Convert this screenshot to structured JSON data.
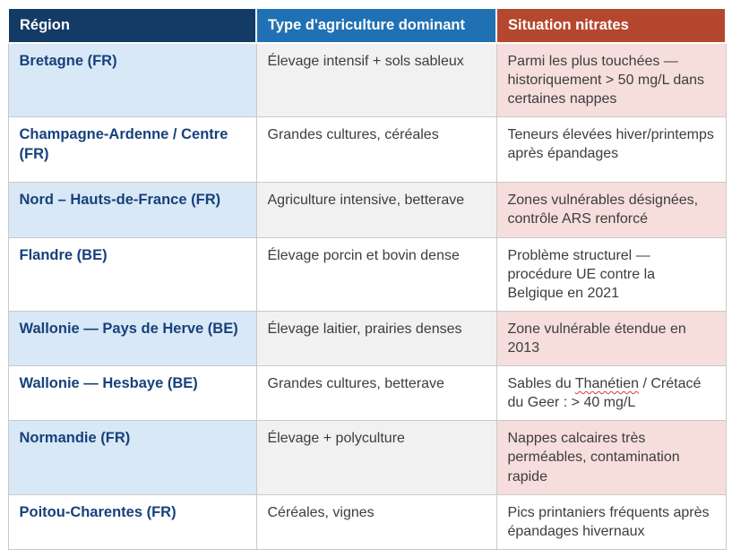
{
  "table": {
    "headers": [
      {
        "label": "Région"
      },
      {
        "label": "Type d'agriculture dominant"
      },
      {
        "label": "Situation nitrates"
      }
    ],
    "rows": [
      {
        "region": "Bretagne (FR)",
        "agriculture": "Élevage intensif + sols sableux",
        "situation": "Parmi les plus touchées — historiquement > 50 mg/L dans certaines nappes"
      },
      {
        "region": "Champagne-Ardenne / Centre (FR)",
        "agriculture": "Grandes cultures, céréales",
        "situation": "Teneurs élevées hiver/printemps après épandages"
      },
      {
        "region": "Nord – Hauts-de-France (FR)",
        "agriculture": "Agriculture intensive, betterave",
        "situation": "Zones vulnérables désignées, contrôle ARS renforcé"
      },
      {
        "region": "Flandre (BE)",
        "agriculture": "Élevage porcin et bovin dense",
        "situation": "Problème structurel — procédure UE contre la Belgique en 2021"
      },
      {
        "region": "Wallonie — Pays de Herve (BE)",
        "agriculture": "Élevage laitier, prairies denses",
        "situation": "Zone vulnérable étendue en 2013"
      },
      {
        "region": "Wallonie — Hesbaye (BE)",
        "agriculture": "Grandes cultures, betterave",
        "situation_before": "Sables du ",
        "situation_word": "Thanétien",
        "situation_after": " / Crétacé du Geer : > 40 mg/L"
      },
      {
        "region": "Normandie (FR)",
        "agriculture": "Élevage + polyculture",
        "situation": "Nappes calcaires très perméables, contamination rapide"
      },
      {
        "region": "Poitou-Charentes (FR)",
        "agriculture": "Céréales, vignes",
        "situation": "Pics printaniers fréquents après épandages hivernaux"
      }
    ],
    "colors": {
      "header_region_bg": "#143a66",
      "header_agriculture_bg": "#2071b4",
      "header_situation_bg": "#b5472e",
      "header_text": "#ffffff",
      "region_cell_bg": "#d9e8f6",
      "region_text": "#16417c",
      "agriculture_cell_bg": "#f1f1f1",
      "situation_cell_bg": "#f6dedc",
      "body_text": "#3d3d3d",
      "border": "#c9c9c9",
      "spellcheck_underline": "#e0382c"
    }
  }
}
